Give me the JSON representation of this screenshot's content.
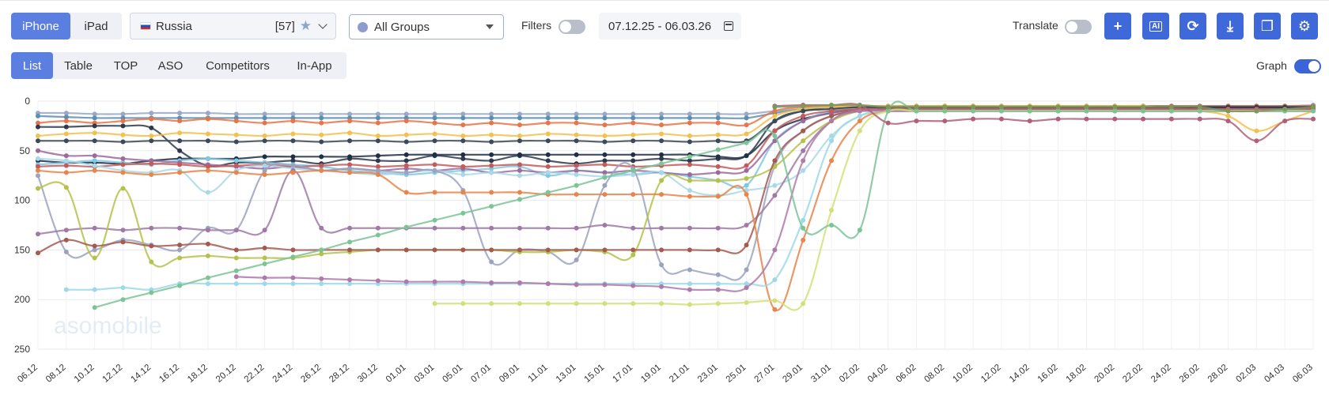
{
  "device_tabs": [
    {
      "label": "iPhone",
      "active": true
    },
    {
      "label": "iPad",
      "active": false
    }
  ],
  "country": {
    "name": "Russia",
    "count": "[57]"
  },
  "group": {
    "label": "All Groups"
  },
  "filters": {
    "label": "Filters",
    "on": false
  },
  "date_range": "07.12.25 - 06.03.26",
  "translate": {
    "label": "Translate",
    "on": false
  },
  "action_buttons": [
    {
      "name": "add-button",
      "icon": "plus-icon",
      "glyph": "+"
    },
    {
      "name": "ai-button",
      "icon": "ai-icon",
      "glyph": "AI"
    },
    {
      "name": "refresh-button",
      "icon": "refresh-icon",
      "glyph": "⟳"
    },
    {
      "name": "download-button",
      "icon": "download-icon",
      "glyph": "⤓"
    },
    {
      "name": "copy-button",
      "icon": "copy-icon",
      "glyph": "❐"
    },
    {
      "name": "settings-button",
      "icon": "gear-icon",
      "glyph": "⚙"
    }
  ],
  "view_tabs": [
    {
      "label": "List",
      "active": true
    },
    {
      "label": "Table",
      "active": false
    },
    {
      "label": "TOP",
      "active": false
    },
    {
      "label": "ASO",
      "active": false
    },
    {
      "label": "Competitors",
      "active": false
    },
    {
      "label": "In-App",
      "active": false
    }
  ],
  "graph": {
    "label": "Graph",
    "on": true
  },
  "colors": {
    "accent": "#3f68d9",
    "active_tab": "#5b7fe0"
  },
  "chart_data": {
    "type": "line",
    "watermark": "asomobile",
    "y_axis": {
      "reversed": true,
      "range": [
        0,
        250
      ],
      "ticks": [
        0,
        50,
        100,
        150,
        200,
        250
      ]
    },
    "grid": true,
    "x": [
      "06.12",
      "08.12",
      "10.12",
      "12.12",
      "14.12",
      "16.12",
      "18.12",
      "20.12",
      "22.12",
      "24.12",
      "26.12",
      "28.12",
      "30.12",
      "01.01",
      "03.01",
      "05.01",
      "07.01",
      "09.01",
      "11.01",
      "13.01",
      "15.01",
      "17.01",
      "19.01",
      "21.01",
      "23.01",
      "25.01",
      "27.01",
      "29.01",
      "31.01",
      "02.02",
      "04.02",
      "06.02",
      "08.02",
      "10.02",
      "12.02",
      "14.02",
      "16.02",
      "18.02",
      "20.02",
      "22.02",
      "24.02",
      "26.02",
      "28.02",
      "02.03",
      "04.03",
      "06.03"
    ],
    "series": [
      {
        "color": "#9aa7c8",
        "values": [
          12,
          12,
          13,
          13,
          12,
          12,
          12,
          13,
          13,
          13,
          13,
          13,
          13,
          13,
          13,
          13,
          13,
          13,
          13,
          13,
          13,
          13,
          13,
          13,
          13,
          13,
          10,
          8,
          6,
          5,
          5,
          5,
          5,
          5,
          5,
          5,
          5,
          5,
          5,
          5,
          5,
          5,
          5,
          5,
          5,
          4
        ]
      },
      {
        "color": "#5b8fb0",
        "values": [
          15,
          16,
          17,
          17,
          17,
          17,
          17,
          17,
          17,
          17,
          17,
          17,
          17,
          17,
          17,
          17,
          17,
          17,
          17,
          17,
          17,
          17,
          17,
          17,
          17,
          17,
          12,
          8,
          6,
          5,
          5,
          5,
          5,
          5,
          5,
          5,
          5,
          5,
          5,
          5,
          5,
          5,
          5,
          5,
          5,
          5
        ]
      },
      {
        "color": "#e8754a",
        "values": [
          22,
          20,
          22,
          20,
          18,
          20,
          18,
          20,
          22,
          20,
          22,
          20,
          22,
          20,
          22,
          24,
          22,
          24,
          22,
          22,
          24,
          22,
          24,
          22,
          22,
          24,
          10,
          6,
          5,
          5,
          5,
          5,
          5,
          5,
          5,
          5,
          5,
          5,
          5,
          5,
          5,
          5,
          5,
          5,
          5,
          5
        ]
      },
      {
        "color": "#2e3a4a",
        "values": [
          26,
          26,
          25,
          25,
          27,
          50,
          65,
          62,
          62,
          60,
          63,
          58,
          60,
          60,
          55,
          58,
          60,
          55,
          60,
          63,
          60,
          60,
          58,
          60,
          58,
          55,
          20,
          10,
          8,
          6,
          6,
          6,
          6,
          6,
          6,
          6,
          6,
          6,
          6,
          6,
          6,
          6,
          6,
          6,
          6,
          6
        ]
      },
      {
        "color": "#f2c14e",
        "values": [
          35,
          33,
          32,
          34,
          35,
          32,
          33,
          34,
          35,
          33,
          34,
          32,
          35,
          34,
          33,
          35,
          34,
          35,
          33,
          34,
          35,
          34,
          33,
          35,
          34,
          33,
          15,
          8,
          6,
          5,
          5,
          5,
          5,
          5,
          5,
          5,
          5,
          5,
          5,
          5,
          8,
          10,
          15,
          30,
          20,
          10
        ]
      },
      {
        "color": "#3a4a5a",
        "values": [
          40,
          40,
          40,
          41,
          40,
          40,
          40,
          41,
          40,
          40,
          41,
          40,
          40,
          41,
          40,
          40,
          41,
          40,
          40,
          40,
          41,
          40,
          40,
          41,
          40,
          40,
          20,
          10,
          8,
          6,
          6,
          6,
          6,
          6,
          6,
          6,
          6,
          6,
          6,
          6,
          6,
          6,
          6,
          6,
          6,
          6
        ]
      },
      {
        "color": "#1f2f45",
        "values": [
          60,
          62,
          62,
          63,
          60,
          58,
          58,
          58,
          56,
          56,
          56,
          56,
          55,
          54,
          54,
          54,
          54,
          54,
          54,
          54,
          54,
          54,
          54,
          54,
          56,
          55,
          30,
          18,
          12,
          8,
          7,
          7,
          7,
          7,
          7,
          7,
          7,
          7,
          7,
          7,
          7,
          7,
          7,
          7,
          7,
          7
        ]
      },
      {
        "color": "#7ec8e3",
        "values": [
          64,
          62,
          60,
          62,
          64,
          60,
          58,
          60,
          62,
          64,
          66,
          70,
          72,
          74,
          72,
          70,
          68,
          66,
          75,
          70,
          72,
          74,
          72,
          76,
          80,
          85,
          40,
          20,
          10,
          8,
          8,
          8,
          8,
          8,
          8,
          8,
          8,
          8,
          8,
          8,
          8,
          8,
          8,
          8,
          8,
          8
        ]
      },
      {
        "color": "#9b6b9e",
        "values": [
          50,
          55,
          55,
          58,
          60,
          62,
          64,
          66,
          68,
          66,
          70,
          68,
          70,
          68,
          70,
          68,
          72,
          70,
          72,
          70,
          72,
          70,
          72,
          74,
          72,
          70,
          40,
          20,
          12,
          8,
          8,
          8,
          8,
          8,
          8,
          8,
          8,
          8,
          8,
          8,
          8,
          8,
          8,
          8,
          8,
          8
        ]
      },
      {
        "color": "#c55a5a",
        "values": [
          66,
          65,
          66,
          64,
          63,
          64,
          66,
          65,
          64,
          66,
          65,
          64,
          66,
          65,
          64,
          66,
          65,
          64,
          66,
          65,
          64,
          66,
          65,
          64,
          66,
          65,
          30,
          15,
          10,
          8,
          8,
          8,
          8,
          8,
          8,
          8,
          8,
          8,
          8,
          8,
          8,
          8,
          8,
          8,
          8,
          8
        ]
      },
      {
        "color": "#a9d8ea",
        "values": [
          58,
          60,
          65,
          70,
          72,
          70,
          92,
          70,
          65,
          68,
          70,
          72,
          74,
          72,
          70,
          74,
          72,
          75,
          72,
          74,
          76,
          74,
          72,
          90,
          95,
          90,
          85,
          70,
          35,
          15,
          10,
          10,
          10,
          10,
          10,
          10,
          10,
          10,
          10,
          10,
          10,
          10,
          10,
          10,
          10,
          10
        ]
      },
      {
        "color": "#9ba3bf",
        "values": [
          75,
          152,
          150,
          140,
          145,
          150,
          128,
          130,
          70,
          65,
          70,
          68,
          70,
          72,
          70,
          90,
          162,
          150,
          152,
          160,
          85,
          68,
          165,
          170,
          175,
          170,
          65,
          30,
          15,
          10,
          10,
          10,
          10,
          10,
          10,
          10,
          10,
          10,
          10,
          10,
          10,
          10,
          10,
          10,
          10,
          10
        ]
      },
      {
        "color": "#a07aa6",
        "values": [
          134,
          130,
          128,
          130,
          128,
          128,
          130,
          130,
          130,
          70,
          128,
          128,
          128,
          128,
          128,
          128,
          128,
          128,
          128,
          128,
          125,
          128,
          128,
          128,
          128,
          125,
          95,
          50,
          20,
          10,
          10,
          10,
          10,
          10,
          10,
          10,
          10,
          10,
          10,
          10,
          10,
          10,
          10,
          10,
          10,
          10
        ]
      },
      {
        "color": "#b5c24a",
        "values": [
          88,
          87,
          158,
          88,
          162,
          158,
          156,
          158,
          158,
          158,
          154,
          152,
          150,
          150,
          150,
          150,
          150,
          152,
          152,
          150,
          152,
          155,
          80,
          80,
          80,
          78,
          66,
          40,
          20,
          10,
          10,
          10,
          10,
          10,
          10,
          10,
          10,
          10,
          10,
          10,
          10,
          10,
          10,
          10,
          10,
          10
        ]
      },
      {
        "color": "#a55a50",
        "values": [
          153,
          140,
          146,
          142,
          146,
          145,
          144,
          150,
          148,
          150,
          150,
          150,
          150,
          150,
          150,
          150,
          150,
          150,
          150,
          150,
          150,
          150,
          150,
          150,
          150,
          145,
          60,
          30,
          15,
          10,
          10,
          10,
          10,
          10,
          10,
          10,
          10,
          10,
          10,
          10,
          10,
          10,
          10,
          10,
          10,
          10
        ]
      },
      {
        "color": "#e8854a",
        "values": [
          70,
          72,
          70,
          72,
          74,
          72,
          70,
          72,
          74,
          72,
          70,
          72,
          74,
          92,
          92,
          92,
          92,
          92,
          94,
          94,
          94,
          94,
          94,
          96,
          96,
          94,
          210,
          140,
          60,
          20,
          10,
          10,
          10,
          10,
          10,
          10,
          10,
          10,
          10,
          10,
          10,
          10,
          10,
          10,
          10,
          10
        ]
      },
      {
        "color": "#9fd8e8",
        "values": [
          null,
          190,
          190,
          188,
          190,
          184,
          184,
          184,
          184,
          184,
          184,
          184,
          184,
          184,
          184,
          184,
          184,
          184,
          184,
          184,
          184,
          184,
          184,
          184,
          184,
          184,
          180,
          120,
          40,
          15,
          10,
          10,
          10,
          10,
          10,
          10,
          10,
          10,
          10,
          10,
          10,
          10,
          10,
          10,
          10,
          10
        ]
      },
      {
        "color": "#b07aa8",
        "values": [
          null,
          null,
          null,
          null,
          null,
          null,
          null,
          177,
          178,
          178,
          179,
          180,
          181,
          182,
          182,
          182,
          183,
          183,
          184,
          185,
          185,
          186,
          187,
          190,
          190,
          188,
          150,
          60,
          20,
          10,
          10,
          10,
          10,
          10,
          10,
          10,
          10,
          10,
          10,
          10,
          10,
          10,
          10,
          10,
          10,
          10
        ]
      },
      {
        "color": "#d3e07a",
        "values": [
          null,
          null,
          null,
          null,
          null,
          null,
          null,
          null,
          null,
          null,
          null,
          null,
          null,
          null,
          204,
          204,
          204,
          204,
          204,
          204,
          204,
          204,
          204,
          205,
          204,
          203,
          201,
          204,
          110,
          30,
          10,
          10,
          10,
          10,
          10,
          10,
          10,
          10,
          10,
          10,
          10,
          10,
          10,
          10,
          10,
          10
        ]
      },
      {
        "color": "#7cc496",
        "values": [
          null,
          null,
          208,
          200,
          193,
          186,
          178,
          171,
          164,
          157,
          150,
          142,
          135,
          127,
          120,
          113,
          106,
          99,
          92,
          85,
          77,
          70,
          63,
          56,
          49,
          42,
          35,
          128,
          125,
          130,
          10,
          10,
          10,
          10,
          10,
          10,
          10,
          10,
          10,
          10,
          10,
          10,
          10,
          10,
          10,
          10
        ]
      },
      {
        "color": "#b06078",
        "values": [
          null,
          null,
          null,
          null,
          null,
          null,
          null,
          null,
          null,
          null,
          null,
          null,
          null,
          null,
          null,
          null,
          null,
          null,
          null,
          null,
          null,
          null,
          null,
          null,
          null,
          null,
          5,
          4,
          4,
          4,
          22,
          20,
          20,
          18,
          18,
          20,
          18,
          18,
          18,
          18,
          18,
          18,
          20,
          40,
          20,
          18
        ]
      },
      {
        "color": "#7a9a5a",
        "values": [
          null,
          null,
          null,
          null,
          null,
          null,
          null,
          null,
          null,
          null,
          null,
          null,
          null,
          null,
          null,
          null,
          null,
          null,
          null,
          null,
          null,
          null,
          null,
          null,
          null,
          null,
          6,
          5,
          4,
          4,
          6,
          6,
          6,
          6,
          6,
          6,
          6,
          6,
          6,
          6,
          6,
          6,
          10,
          10,
          8,
          6
        ]
      }
    ]
  }
}
